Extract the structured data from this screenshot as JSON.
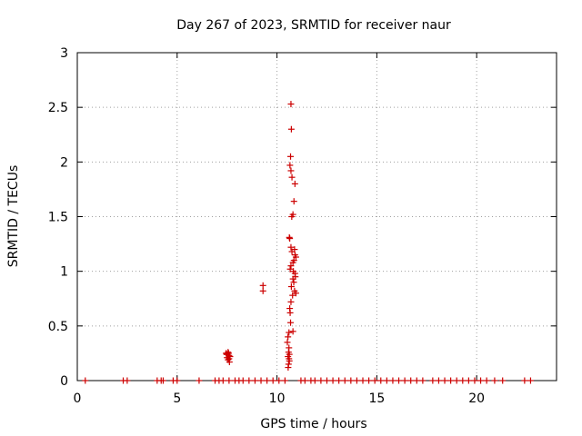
{
  "chart_data": {
    "type": "scatter",
    "title": "Day 267 of 2023, SRMTID for receiver naur",
    "xlabel": "GPS time / hours",
    "ylabel": "SRMTID / TECUs",
    "xlim": [
      0,
      24
    ],
    "ylim": [
      0,
      3
    ],
    "xticks": [
      0,
      5,
      10,
      15,
      20
    ],
    "xtick_labels": [
      "0",
      "5",
      "10",
      "15",
      "20"
    ],
    "yticks": [
      0,
      0.5,
      1,
      1.5,
      2,
      2.5,
      3
    ],
    "ytick_labels": [
      "0",
      "0.5",
      "1",
      "1.5",
      "2",
      "2.5",
      "3"
    ],
    "grid": true,
    "marker": "plus",
    "color": "#cc0000",
    "series": [
      {
        "x": [
          0.4,
          2.3,
          2.5,
          4.0,
          4.2,
          4.3,
          4.8,
          5.0,
          6.1,
          6.9,
          7.1,
          7.3,
          7.6,
          7.9,
          8.1,
          8.3,
          8.6,
          8.9,
          9.2,
          9.5,
          9.8,
          10.1,
          10.4,
          11.2,
          11.4,
          11.7,
          11.9,
          12.2,
          12.5,
          12.8,
          13.1,
          13.4,
          13.7,
          14.0,
          14.3,
          14.6,
          14.9,
          15.2,
          15.5,
          15.8,
          16.1,
          16.4,
          16.7,
          17.0,
          17.3,
          17.8,
          18.1,
          18.4,
          18.7,
          19.0,
          19.3,
          19.6,
          19.9,
          20.2,
          20.5,
          20.9,
          21.3,
          22.4,
          22.7
        ],
        "y": [
          0,
          0,
          0,
          0,
          0,
          0,
          0,
          0,
          0,
          0,
          0,
          0,
          0,
          0,
          0,
          0,
          0,
          0,
          0,
          0,
          0,
          0,
          0,
          0,
          0,
          0,
          0,
          0,
          0,
          0,
          0,
          0,
          0,
          0,
          0,
          0,
          0,
          0,
          0,
          0,
          0,
          0,
          0,
          0,
          0,
          0,
          0,
          0,
          0,
          0,
          0,
          0,
          0,
          0,
          0,
          0,
          0,
          0,
          0
        ]
      },
      {
        "x": [
          7.45,
          7.5,
          7.55,
          7.6,
          7.65,
          7.5,
          7.6,
          7.55,
          7.62,
          7.48,
          7.58
        ],
        "y": [
          0.25,
          0.24,
          0.26,
          0.23,
          0.22,
          0.21,
          0.2,
          0.19,
          0.17,
          0.24,
          0.25
        ]
      },
      {
        "x": [
          9.3,
          9.3
        ],
        "y": [
          0.87,
          0.82
        ]
      },
      {
        "x": [
          10.7,
          10.72,
          10.68,
          10.65,
          10.7,
          10.75,
          10.9,
          10.85,
          10.74,
          10.8,
          10.88,
          10.62,
          10.64,
          10.7,
          10.75,
          10.9,
          10.95,
          10.85,
          10.8,
          10.7,
          10.66,
          10.82,
          10.9,
          10.92,
          10.8,
          10.84,
          10.88,
          10.72,
          10.78,
          10.95,
          10.7,
          10.64,
          10.66,
          10.68,
          10.8,
          10.55,
          10.52,
          10.6,
          10.58,
          10.62,
          10.55,
          10.6,
          10.62,
          10.58,
          10.56,
          10.6
        ],
        "y": [
          2.53,
          2.3,
          2.05,
          1.97,
          1.92,
          1.86,
          1.8,
          1.64,
          1.5,
          1.52,
          1.2,
          1.31,
          1.3,
          1.22,
          1.18,
          1.15,
          1.13,
          1.1,
          1.08,
          1.05,
          1.02,
          1.0,
          0.98,
          0.95,
          0.93,
          0.9,
          0.82,
          0.86,
          0.78,
          0.8,
          0.72,
          0.66,
          0.62,
          0.53,
          0.45,
          0.4,
          0.35,
          0.3,
          0.26,
          0.24,
          0.22,
          0.2,
          0.18,
          0.15,
          0.12,
          0.44
        ]
      }
    ]
  }
}
